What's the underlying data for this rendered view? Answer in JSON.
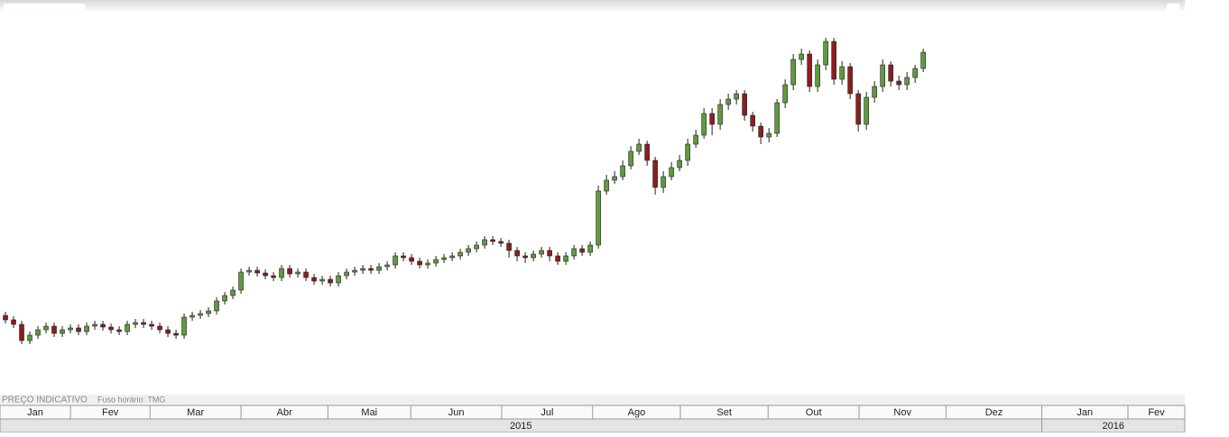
{
  "chart_data": {
    "type": "candlestick",
    "footer_title": "PREÇO INDICATIVO",
    "footer_timezone": "Fuso horário: TMG",
    "x": [
      0,
      1,
      2,
      3,
      4,
      5,
      6,
      7,
      8,
      9,
      10,
      11,
      12,
      13,
      14,
      15,
      16,
      17,
      18,
      19,
      20,
      21,
      22,
      23,
      24,
      25,
      26,
      27,
      28,
      29,
      30,
      31,
      32,
      33,
      34,
      35,
      36,
      37,
      38,
      39,
      40,
      41,
      42,
      43,
      44,
      45,
      46,
      47,
      48,
      49,
      50,
      51,
      52,
      53,
      54,
      55,
      56,
      57,
      58,
      59,
      60,
      61,
      62,
      63,
      64,
      65,
      66,
      67,
      68,
      69,
      70,
      71,
      72,
      73,
      74,
      75,
      76,
      77,
      78,
      79,
      80,
      81,
      82,
      83,
      84,
      85,
      86,
      87,
      88,
      89,
      90,
      91,
      92,
      93,
      94,
      95,
      96,
      97,
      98,
      99,
      100,
      101,
      102,
      103,
      104,
      105,
      106,
      107,
      108,
      109,
      110,
      111,
      112,
      113
    ],
    "open": [
      90,
      85,
      80,
      62,
      68,
      74,
      78,
      70,
      74,
      76,
      72,
      78,
      80,
      77,
      74,
      72,
      80,
      82,
      80,
      78,
      74,
      70,
      68,
      88,
      90,
      92,
      95,
      106,
      112,
      118,
      138,
      140,
      137,
      134,
      132,
      142,
      136,
      138,
      132,
      128,
      130,
      126,
      134,
      138,
      140,
      142,
      140,
      144,
      146,
      156,
      154,
      150,
      146,
      148,
      152,
      154,
      156,
      160,
      164,
      168,
      174,
      172,
      170,
      162,
      156,
      154,
      158,
      162,
      156,
      150,
      156,
      164,
      160,
      168,
      228,
      240,
      244,
      256,
      272,
      280,
      262,
      232,
      244,
      254,
      262,
      280,
      290,
      314,
      302,
      324,
      330,
      336,
      312,
      300,
      288,
      292,
      326,
      346,
      374,
      380,
      344,
      368,
      394,
      352,
      366,
      336,
      302,
      332,
      344,
      368,
      350,
      346,
      354,
      364
    ],
    "high": [
      94,
      89,
      84,
      72,
      78,
      82,
      82,
      78,
      80,
      80,
      82,
      84,
      84,
      81,
      78,
      84,
      86,
      86,
      84,
      82,
      78,
      74,
      92,
      94,
      96,
      99,
      110,
      116,
      122,
      142,
      144,
      144,
      141,
      138,
      146,
      146,
      142,
      142,
      136,
      134,
      134,
      138,
      142,
      144,
      146,
      146,
      148,
      150,
      160,
      160,
      158,
      154,
      152,
      156,
      158,
      160,
      164,
      168,
      172,
      178,
      178,
      176,
      174,
      166,
      160,
      162,
      166,
      166,
      160,
      160,
      168,
      168,
      172,
      234,
      246,
      250,
      262,
      278,
      286,
      284,
      266,
      250,
      260,
      268,
      286,
      296,
      320,
      320,
      330,
      336,
      340,
      340,
      316,
      304,
      298,
      330,
      352,
      380,
      386,
      384,
      374,
      398,
      398,
      372,
      370,
      340,
      338,
      350,
      374,
      372,
      356,
      360,
      368,
      386
    ],
    "low": [
      81,
      76,
      58,
      58,
      64,
      70,
      66,
      66,
      70,
      68,
      68,
      74,
      73,
      70,
      68,
      68,
      76,
      76,
      74,
      70,
      66,
      64,
      64,
      84,
      86,
      88,
      91,
      102,
      108,
      114,
      134,
      133,
      130,
      128,
      128,
      132,
      132,
      128,
      124,
      124,
      122,
      122,
      130,
      134,
      136,
      136,
      136,
      140,
      142,
      150,
      146,
      142,
      142,
      144,
      148,
      150,
      152,
      156,
      160,
      164,
      168,
      166,
      154,
      150,
      148,
      150,
      154,
      150,
      146,
      146,
      152,
      156,
      156,
      164,
      224,
      236,
      240,
      252,
      268,
      256,
      224,
      226,
      240,
      250,
      256,
      276,
      286,
      290,
      296,
      318,
      324,
      306,
      294,
      280,
      282,
      288,
      320,
      340,
      368,
      338,
      338,
      362,
      346,
      346,
      330,
      294,
      296,
      326,
      338,
      344,
      340,
      340,
      348,
      360
    ],
    "close": [
      85,
      80,
      62,
      68,
      74,
      78,
      70,
      74,
      76,
      72,
      78,
      80,
      77,
      74,
      72,
      80,
      82,
      80,
      78,
      74,
      70,
      68,
      88,
      90,
      92,
      95,
      106,
      112,
      118,
      138,
      140,
      137,
      134,
      132,
      142,
      136,
      138,
      132,
      128,
      130,
      126,
      134,
      138,
      140,
      142,
      140,
      144,
      146,
      156,
      154,
      150,
      146,
      148,
      152,
      154,
      156,
      160,
      164,
      168,
      174,
      172,
      170,
      162,
      156,
      154,
      158,
      162,
      156,
      150,
      156,
      164,
      160,
      168,
      228,
      240,
      244,
      256,
      272,
      280,
      262,
      232,
      244,
      254,
      262,
      280,
      290,
      314,
      302,
      324,
      330,
      336,
      312,
      300,
      288,
      292,
      326,
      346,
      374,
      380,
      344,
      368,
      394,
      352,
      366,
      336,
      302,
      332,
      344,
      368,
      350,
      346,
      354,
      364,
      382
    ],
    "up_color": "#5f9b3e",
    "down_color": "#8b1e1e",
    "ylim": [
      0,
      440
    ],
    "xlim": [
      -0.67,
      145.2
    ],
    "xticks": [
      8,
      17.8,
      29,
      39.7,
      49.9,
      61.1,
      72.3,
      83.1,
      93.9,
      105.1,
      115.8,
      127.6,
      138.2
    ],
    "categories": [
      "Jan",
      "Fev",
      "Mar",
      "Abr",
      "Mai",
      "Jun",
      "Jul",
      "Ago",
      "Set",
      "Out",
      "Nov",
      "Dez",
      "Jan",
      "Fev"
    ],
    "years": [
      {
        "label": "2015",
        "start": -0.67
      },
      {
        "label": "2016",
        "start": 127.6
      }
    ]
  }
}
